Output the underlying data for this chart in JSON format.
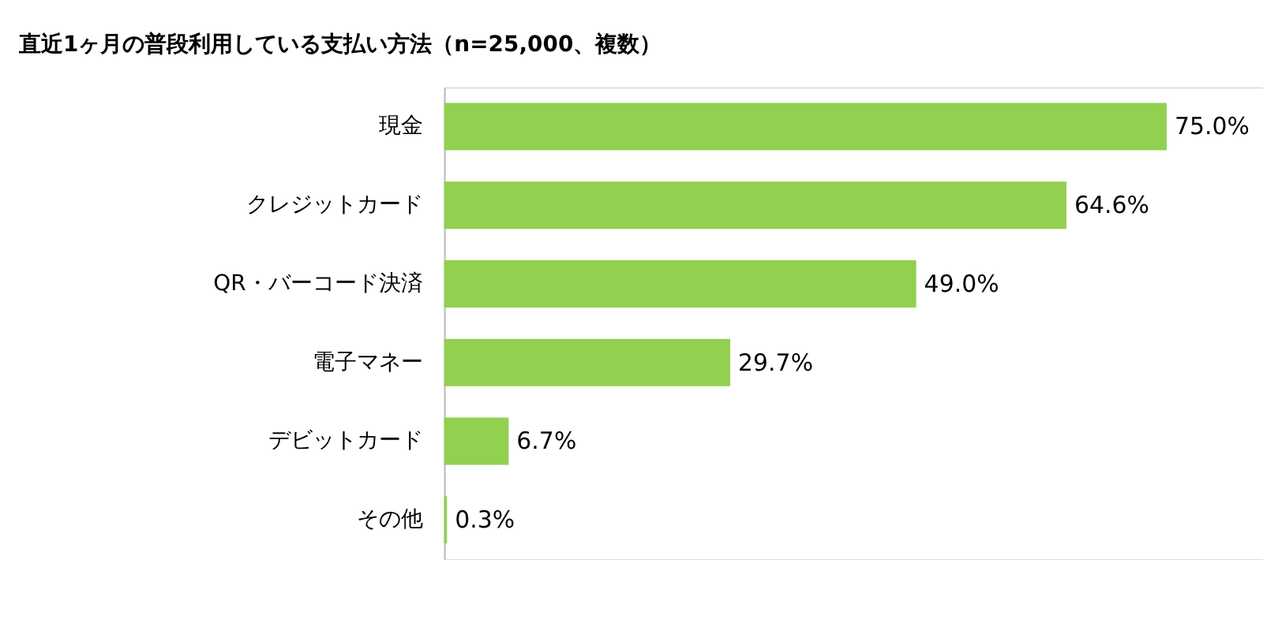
{
  "chart_data": {
    "type": "bar",
    "orientation": "horizontal",
    "title": "直近1ヶ月の普段利用している支払い方法（n=25,000、複数）",
    "categories": [
      "現金",
      "クレジットカード",
      "QR・バーコード決済",
      "電子マネー",
      "デビットカード",
      "その他"
    ],
    "values": [
      75.0,
      64.6,
      49.0,
      29.7,
      6.7,
      0.3
    ],
    "value_labels": [
      "75.0%",
      "64.6%",
      "49.0%",
      "29.7%",
      "6.7%",
      "0.3%"
    ],
    "color": "#92d050"
  }
}
